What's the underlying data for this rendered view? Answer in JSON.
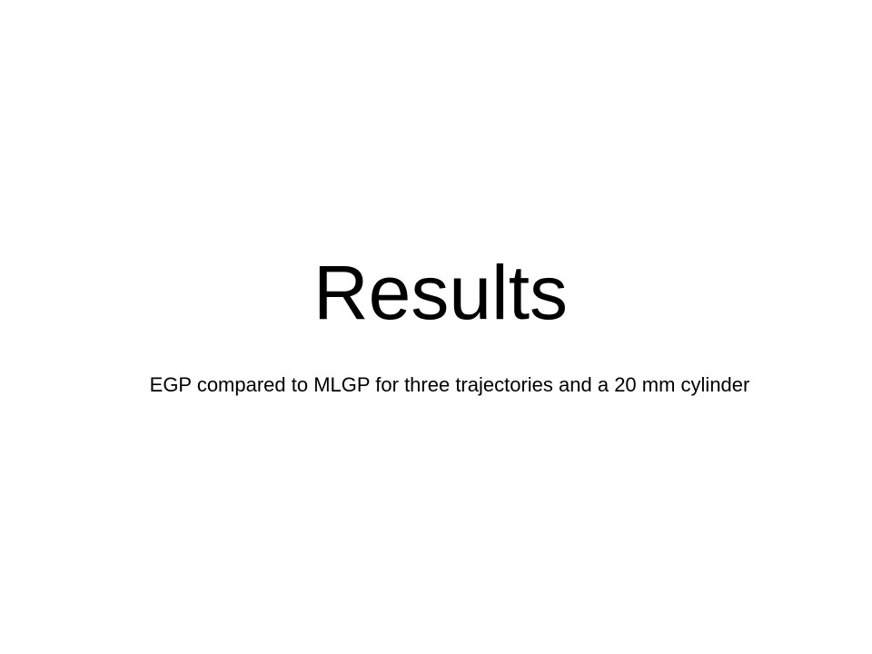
{
  "slide": {
    "title": "Results",
    "subtitle": "EGP compared to MLGP for three trajectories and a 20 mm cylinder",
    "background_color": "#ffffff",
    "text_color": "#000000"
  }
}
